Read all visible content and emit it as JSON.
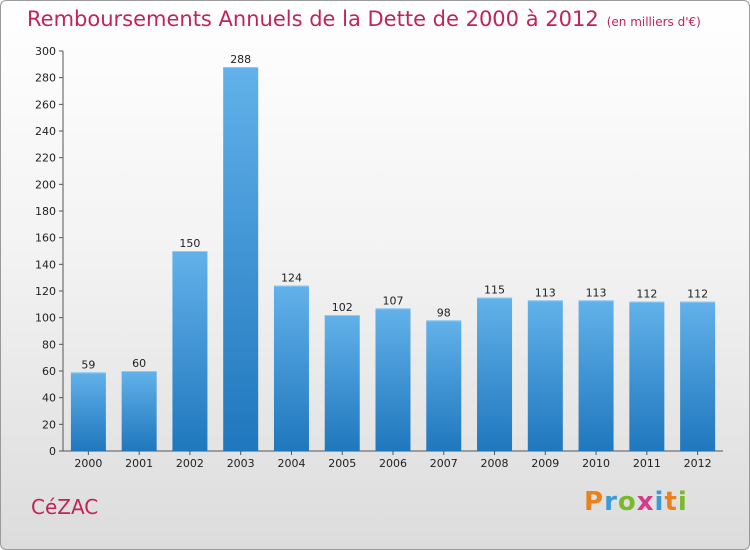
{
  "header": {
    "title": "Remboursements Annuels de la Dette de 2000 à 2012",
    "unit": "(en milliers d'€)"
  },
  "commune": "CéZAC",
  "brand": {
    "letters": [
      {
        "char": "P",
        "color": "#e8821e"
      },
      {
        "char": "r",
        "color": "#3a9ad9"
      },
      {
        "char": "o",
        "color": "#7ab929"
      },
      {
        "char": "x",
        "color": "#d63b8a"
      },
      {
        "char": "i",
        "color": "#3a9ad9"
      },
      {
        "char": "t",
        "color": "#e8821e"
      },
      {
        "char": "i",
        "color": "#7ab929"
      }
    ]
  },
  "chart_data": {
    "type": "bar",
    "title": "Remboursements Annuels de la Dette de 2000 à 2012",
    "subtitle": "(en milliers d'€)",
    "categories": [
      "2000",
      "2001",
      "2002",
      "2003",
      "2004",
      "2005",
      "2006",
      "2007",
      "2008",
      "2009",
      "2010",
      "2011",
      "2012"
    ],
    "values": [
      59,
      60,
      150,
      288,
      124,
      102,
      107,
      98,
      115,
      113,
      113,
      112,
      112
    ],
    "ylim": [
      0,
      300
    ],
    "yticks": [
      0,
      20,
      40,
      60,
      80,
      100,
      120,
      140,
      160,
      180,
      200,
      220,
      240,
      260,
      280,
      300
    ],
    "grid": false,
    "colors": {
      "bar_top": "#62b1ea",
      "bar_bottom": "#1f77bd",
      "accent": "#c0245c"
    }
  }
}
